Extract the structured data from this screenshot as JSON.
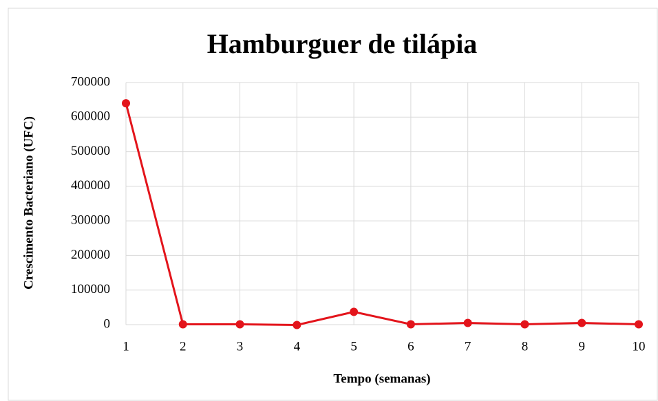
{
  "chart_data": {
    "type": "line",
    "title": "Hamburguer de tilápia",
    "x_label": "Tempo  (semanas)",
    "y_label": "Crescimento Bacteriano  (UFC)",
    "x": [
      1,
      2,
      3,
      4,
      5,
      6,
      7,
      8,
      9,
      10
    ],
    "series": [
      {
        "name": "Hamburguer de tilápia",
        "color": "#e3141b",
        "values": [
          640000,
          1000,
          1000,
          -1000,
          37000,
          1000,
          5000,
          1000,
          5000,
          1000
        ]
      }
    ],
    "xlim": [
      1,
      10
    ],
    "xticks": [
      1,
      2,
      3,
      4,
      5,
      6,
      7,
      8,
      9,
      10
    ],
    "ylim": [
      0,
      700000
    ],
    "yticks": [
      0,
      100000,
      200000,
      300000,
      400000,
      500000,
      600000,
      700000
    ],
    "grid": true
  }
}
